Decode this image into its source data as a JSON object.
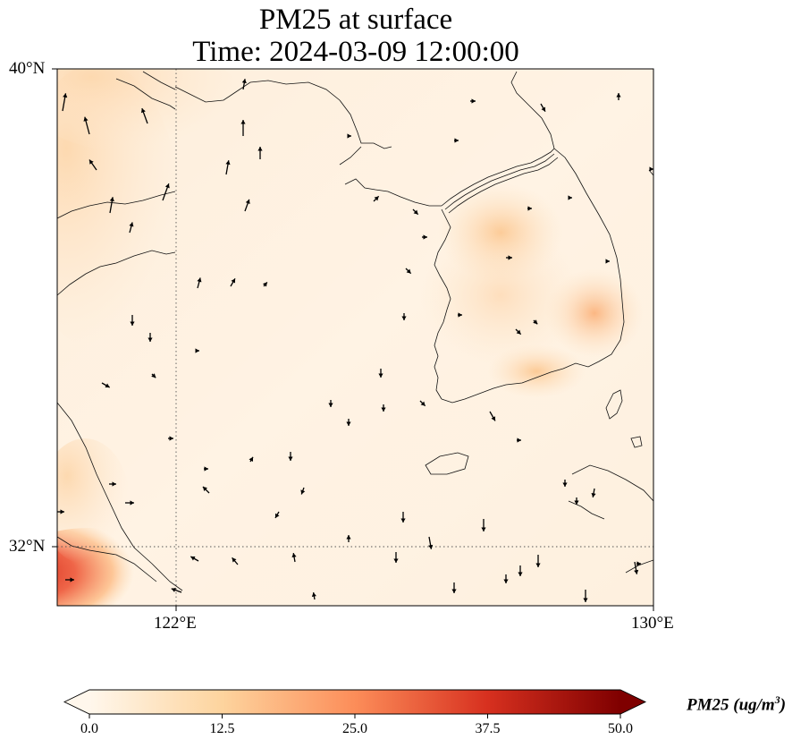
{
  "title": {
    "line1": "PM25 at surface",
    "line2": "Time: 2024-03-09 12:00:00"
  },
  "map": {
    "lat_labels": [
      "40°N",
      "32°N"
    ],
    "lon_labels": [
      "122°E",
      "130°E"
    ],
    "extent": {
      "lon_min": 120,
      "lon_max": 130,
      "lat_min": 31,
      "lat_max": 40
    },
    "gridlines": {
      "lon": [
        122
      ],
      "lat": [
        32
      ],
      "style": "dotted"
    },
    "features": [
      "coastlines",
      "country borders",
      "pm25 field",
      "wind vectors"
    ]
  },
  "colorbar": {
    "label_prefix": "PM25 (ug/m",
    "label_sup": "3",
    "label_suffix": ")",
    "ticks": [
      "0.0",
      "12.5",
      "25.0",
      "37.5",
      "50.0"
    ],
    "min": 0,
    "max": 50,
    "extend": "both",
    "colormap": "OrRd",
    "colors": [
      "#fff7ec",
      "#fdd49e",
      "#fc8d59",
      "#d7301f",
      "#7f0000"
    ]
  }
}
